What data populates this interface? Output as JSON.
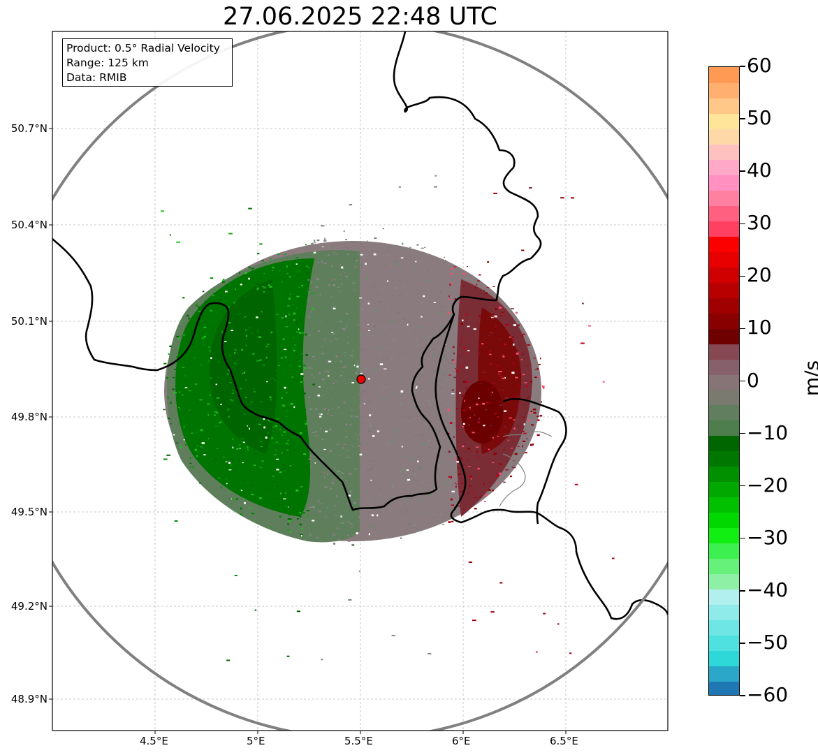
{
  "title": "27.06.2025 22:48 UTC",
  "info": {
    "product": "Product: 0.5° Radial Velocity",
    "range": "Range: 125 km",
    "source": "Data: RMIB"
  },
  "axes": {
    "lat_ticks": [
      "50.7°N",
      "50.4°N",
      "50.1°N",
      "49.8°N",
      "49.5°N",
      "49.2°N",
      "48.9°N"
    ],
    "lon_ticks": [
      "4.5°E",
      "5°E",
      "5.5°E",
      "6°E",
      "6.5°E"
    ]
  },
  "colorbar": {
    "unit": "m/s",
    "ticks": [
      "60",
      "50",
      "40",
      "30",
      "20",
      "10",
      "0",
      "−10",
      "−20",
      "−30",
      "−40",
      "−50",
      "−60"
    ],
    "range": [
      -60,
      60
    ],
    "colors": [
      "#1f78b4",
      "#2aa7c9",
      "#2ed8d8",
      "#4fe0e0",
      "#6fe6e6",
      "#8feaea",
      "#b2efef",
      "#8ef0a4",
      "#66f27a",
      "#3cf04f",
      "#11ee11",
      "#00d800",
      "#00c000",
      "#00a800",
      "#009000",
      "#007800",
      "#006600",
      "#4e7e4e",
      "#617e5f",
      "#7a7a70",
      "#867476",
      "#86606a",
      "#864853",
      "#6e0000",
      "#880000",
      "#a00000",
      "#b80000",
      "#d00000",
      "#e80000",
      "#fc0000",
      "#ff4060",
      "#ff6080",
      "#ff80a0",
      "#ff90c0",
      "#ffa8c8",
      "#ffc0c0",
      "#ffd8a8",
      "#ffe59a",
      "#ffc888",
      "#ffb070",
      "#ff9a55"
    ]
  },
  "colors": {
    "outward": "#8b0000",
    "inward": "#006400",
    "neutral": "#7e7a74",
    "border": "#000000",
    "range_ring": "#808080",
    "radar_site": "#e00000"
  }
}
